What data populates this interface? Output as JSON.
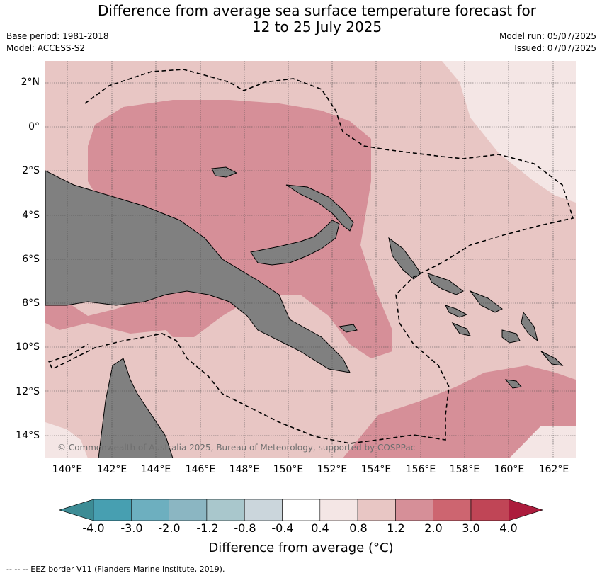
{
  "title_line1": "Difference from average sea surface temperature forecast for",
  "title_line2": "12 to 25 July 2025",
  "base_period": "Base period: 1981-2018",
  "model": "Model: ACCESS-S2",
  "model_run": "Model run: 05/07/2025",
  "issued": "Issued: 07/07/2025",
  "lat_labels": [
    "2°N",
    "0°",
    "2°S",
    "4°S",
    "6°S",
    "8°S",
    "10°S",
    "12°S",
    "14°S"
  ],
  "lon_labels": [
    "140°E",
    "142°E",
    "144°E",
    "146°E",
    "148°E",
    "150°E",
    "152°E",
    "154°E",
    "156°E",
    "158°E",
    "160°E",
    "162°E"
  ],
  "copyright": "© Commonwealth of Australia 2025, Bureau of Meteorology, supported by COSPPac",
  "colorbar": {
    "ticks": [
      "-4.0",
      "-3.0",
      "-2.0",
      "-1.2",
      "-0.8",
      "-0.4",
      "0.4",
      "0.8",
      "1.2",
      "2.0",
      "3.0",
      "4.0"
    ],
    "colors": [
      "#3d8c95",
      "#479fb1",
      "#6dafbf",
      "#8bb6c2",
      "#a9c7cc",
      "#cbd6dc",
      "#ffffff",
      "#f4e6e5",
      "#e8c6c4",
      "#d68f98",
      "#cd6570",
      "#c04556",
      "#ac1c3d"
    ]
  },
  "colorbar_label": "Difference from average (°C)",
  "footer": "--  --  -- EEZ border V11 (Flanders Marine Institute, 2019).",
  "colors": {
    "land": "#808080",
    "light": "#f4e6e5",
    "mid": "#e8c6c4",
    "warm": "#d68f98"
  }
}
